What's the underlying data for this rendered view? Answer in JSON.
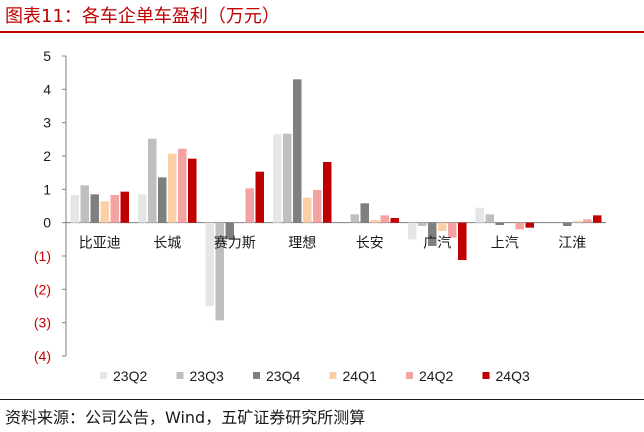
{
  "header": {
    "title": "图表11：各车企单车盈利（万元）"
  },
  "footer": {
    "source": "资料来源：公司公告，Wind，五矿证券研究所测算"
  },
  "colors": {
    "title": "#c00000",
    "negative_tick": "#c00000",
    "positive_tick": "#1a1a1a",
    "series": [
      "#e6e6e6",
      "#bfbfbf",
      "#7f7f7f",
      "#fbcfa8",
      "#f4a3a3",
      "#c00000"
    ]
  },
  "chart_data": {
    "type": "bar",
    "title": "图表11：各车企单车盈利（万元）",
    "unit": "万元",
    "categories": [
      "比亚迪",
      "长城",
      "赛力斯",
      "理想",
      "长安",
      "广汽",
      "上汽",
      "江淮"
    ],
    "series": [
      {
        "name": "23Q2",
        "values": [
          0.83,
          0.85,
          -2.5,
          2.65,
          0.0,
          -0.5,
          0.45,
          0.0
        ]
      },
      {
        "name": "23Q3",
        "values": [
          1.12,
          2.52,
          -2.93,
          2.67,
          0.25,
          -0.1,
          0.25,
          0.0
        ]
      },
      {
        "name": "23Q4",
        "values": [
          0.85,
          1.36,
          -0.5,
          4.3,
          0.58,
          -0.7,
          -0.07,
          -0.1
        ]
      },
      {
        "name": "24Q1",
        "values": [
          0.64,
          2.07,
          0.0,
          0.75,
          0.08,
          -0.25,
          0.0,
          0.05
        ]
      },
      {
        "name": "24Q2",
        "values": [
          0.83,
          2.22,
          1.03,
          0.98,
          0.22,
          -0.45,
          -0.2,
          0.1
        ]
      },
      {
        "name": "24Q3",
        "values": [
          0.93,
          1.92,
          1.53,
          1.82,
          0.14,
          -1.12,
          -0.15,
          0.22
        ]
      }
    ],
    "ylim": [
      -4,
      5
    ],
    "yticks": [
      5,
      4,
      3,
      2,
      1,
      0,
      -1,
      -2,
      -3,
      -4
    ],
    "ytick_labels": [
      "5",
      "4",
      "3",
      "2",
      "1",
      "0",
      "(1)",
      "(2)",
      "(3)",
      "(4)"
    ],
    "grid": false,
    "legend": "bottom"
  }
}
